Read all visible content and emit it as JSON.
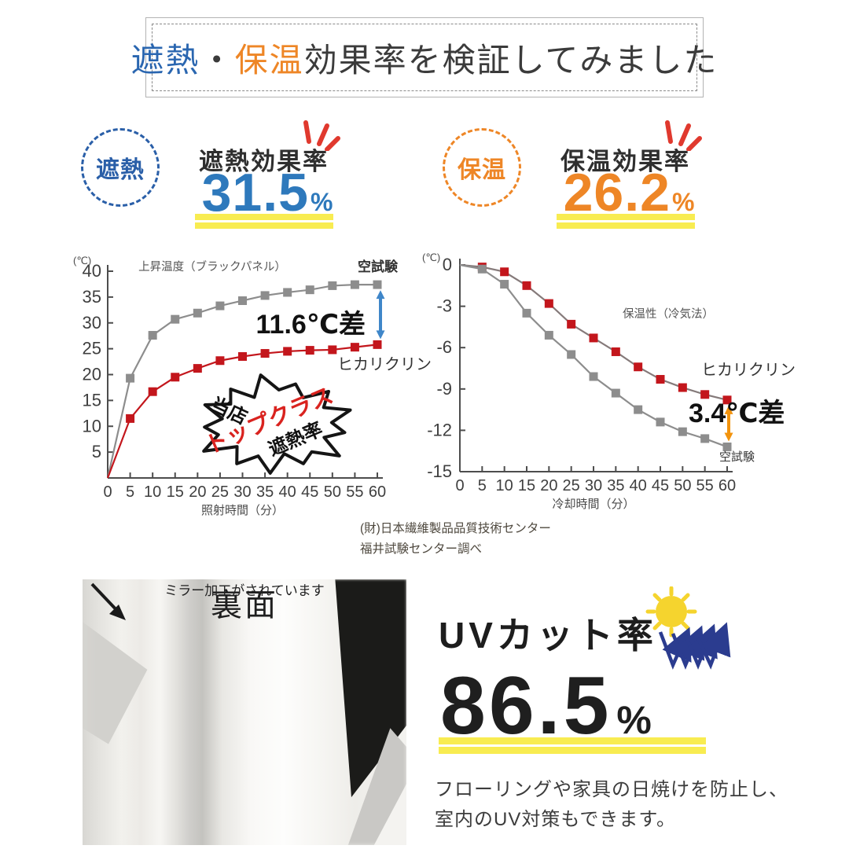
{
  "colors": {
    "blue": "#2a66b0",
    "orange": "#ee8626",
    "accent_red": "#e0392e",
    "yellow_highlight": "#f8ec51",
    "series_red": "#c3161c",
    "series_gray": "#8d8d8d"
  },
  "title": {
    "blue": "遮熱",
    "dot": "・",
    "orange": "保温",
    "rest": "効果率を検証してみました"
  },
  "shading": {
    "badge": "遮熱",
    "heading": "遮熱効果率",
    "value": "31.5",
    "unit": "%"
  },
  "insulation": {
    "badge": "保温",
    "heading": "保温効果率",
    "value": "26.2",
    "unit": "%"
  },
  "chart_data": [
    {
      "type": "line",
      "title": "上昇温度（ブラックパネル）",
      "unit_label": "(℃)",
      "xlabel": "照射時間（分）",
      "x": [
        0,
        5,
        10,
        15,
        20,
        25,
        30,
        35,
        40,
        45,
        50,
        55,
        60
      ],
      "ylim": [
        0,
        40
      ],
      "yticks": [
        5,
        10,
        15,
        20,
        25,
        30,
        35,
        40
      ],
      "series": [
        {
          "name": "空試験",
          "line_color": "#8d8d8d",
          "marker_color": "#8d8d8d",
          "values": [
            0,
            19.3,
            27.6,
            30.7,
            31.9,
            33.3,
            34.3,
            35.3,
            35.9,
            36.4,
            37.2,
            37.4,
            37.4
          ]
        },
        {
          "name": "ヒカリクリン",
          "line_color": "#c3161c",
          "marker_color": "#c3161c",
          "values": [
            0,
            11.5,
            16.7,
            19.5,
            21.2,
            22.7,
            23.5,
            24.1,
            24.5,
            24.7,
            24.8,
            25.3,
            25.8
          ]
        }
      ],
      "annotation": {
        "text": "11.6℃差",
        "arrow_color": "#3f86c9"
      },
      "burst": {
        "line1": "当店",
        "line2": "トップクラス",
        "line3": "遮熱率"
      }
    },
    {
      "type": "line",
      "title": "保温性（冷気法）",
      "unit_label": "(℃)",
      "xlabel": "冷却時間（分）",
      "x": [
        0,
        5,
        10,
        15,
        20,
        25,
        30,
        35,
        40,
        45,
        50,
        55,
        60
      ],
      "ylim": [
        -15,
        0
      ],
      "yticks": [
        0,
        -3,
        -6,
        -9,
        -12,
        -15
      ],
      "series": [
        {
          "name": "ヒカリクリン",
          "line_color": "#857a7a",
          "marker_color": "#c3161c",
          "values": [
            0,
            -0.15,
            -0.5,
            -1.5,
            -2.8,
            -4.3,
            -5.3,
            -6.3,
            -7.4,
            -8.3,
            -8.9,
            -9.4,
            -9.8
          ]
        },
        {
          "name": "空試験",
          "line_color": "#8d8d8d",
          "marker_color": "#8d8d8d",
          "values": [
            0,
            -0.3,
            -1.4,
            -3.5,
            -5.1,
            -6.5,
            -8.1,
            -9.3,
            -10.5,
            -11.4,
            -12.1,
            -12.6,
            -13.2
          ]
        }
      ],
      "annotation": {
        "text": "3.4℃差",
        "arrow_color": "#f2930d"
      }
    }
  ],
  "source": {
    "line1": "(財)日本繊維製品品質技術センター",
    "line2": "福井試験センター調べ"
  },
  "photo": {
    "label": "裏面",
    "caption": "ミラー加工がされています"
  },
  "uv": {
    "heading": "UVカット率",
    "value": "86.5",
    "unit": "%",
    "desc1": "フローリングや家具の日焼けを防止し、",
    "desc2": "室内のUV対策もできます。"
  }
}
